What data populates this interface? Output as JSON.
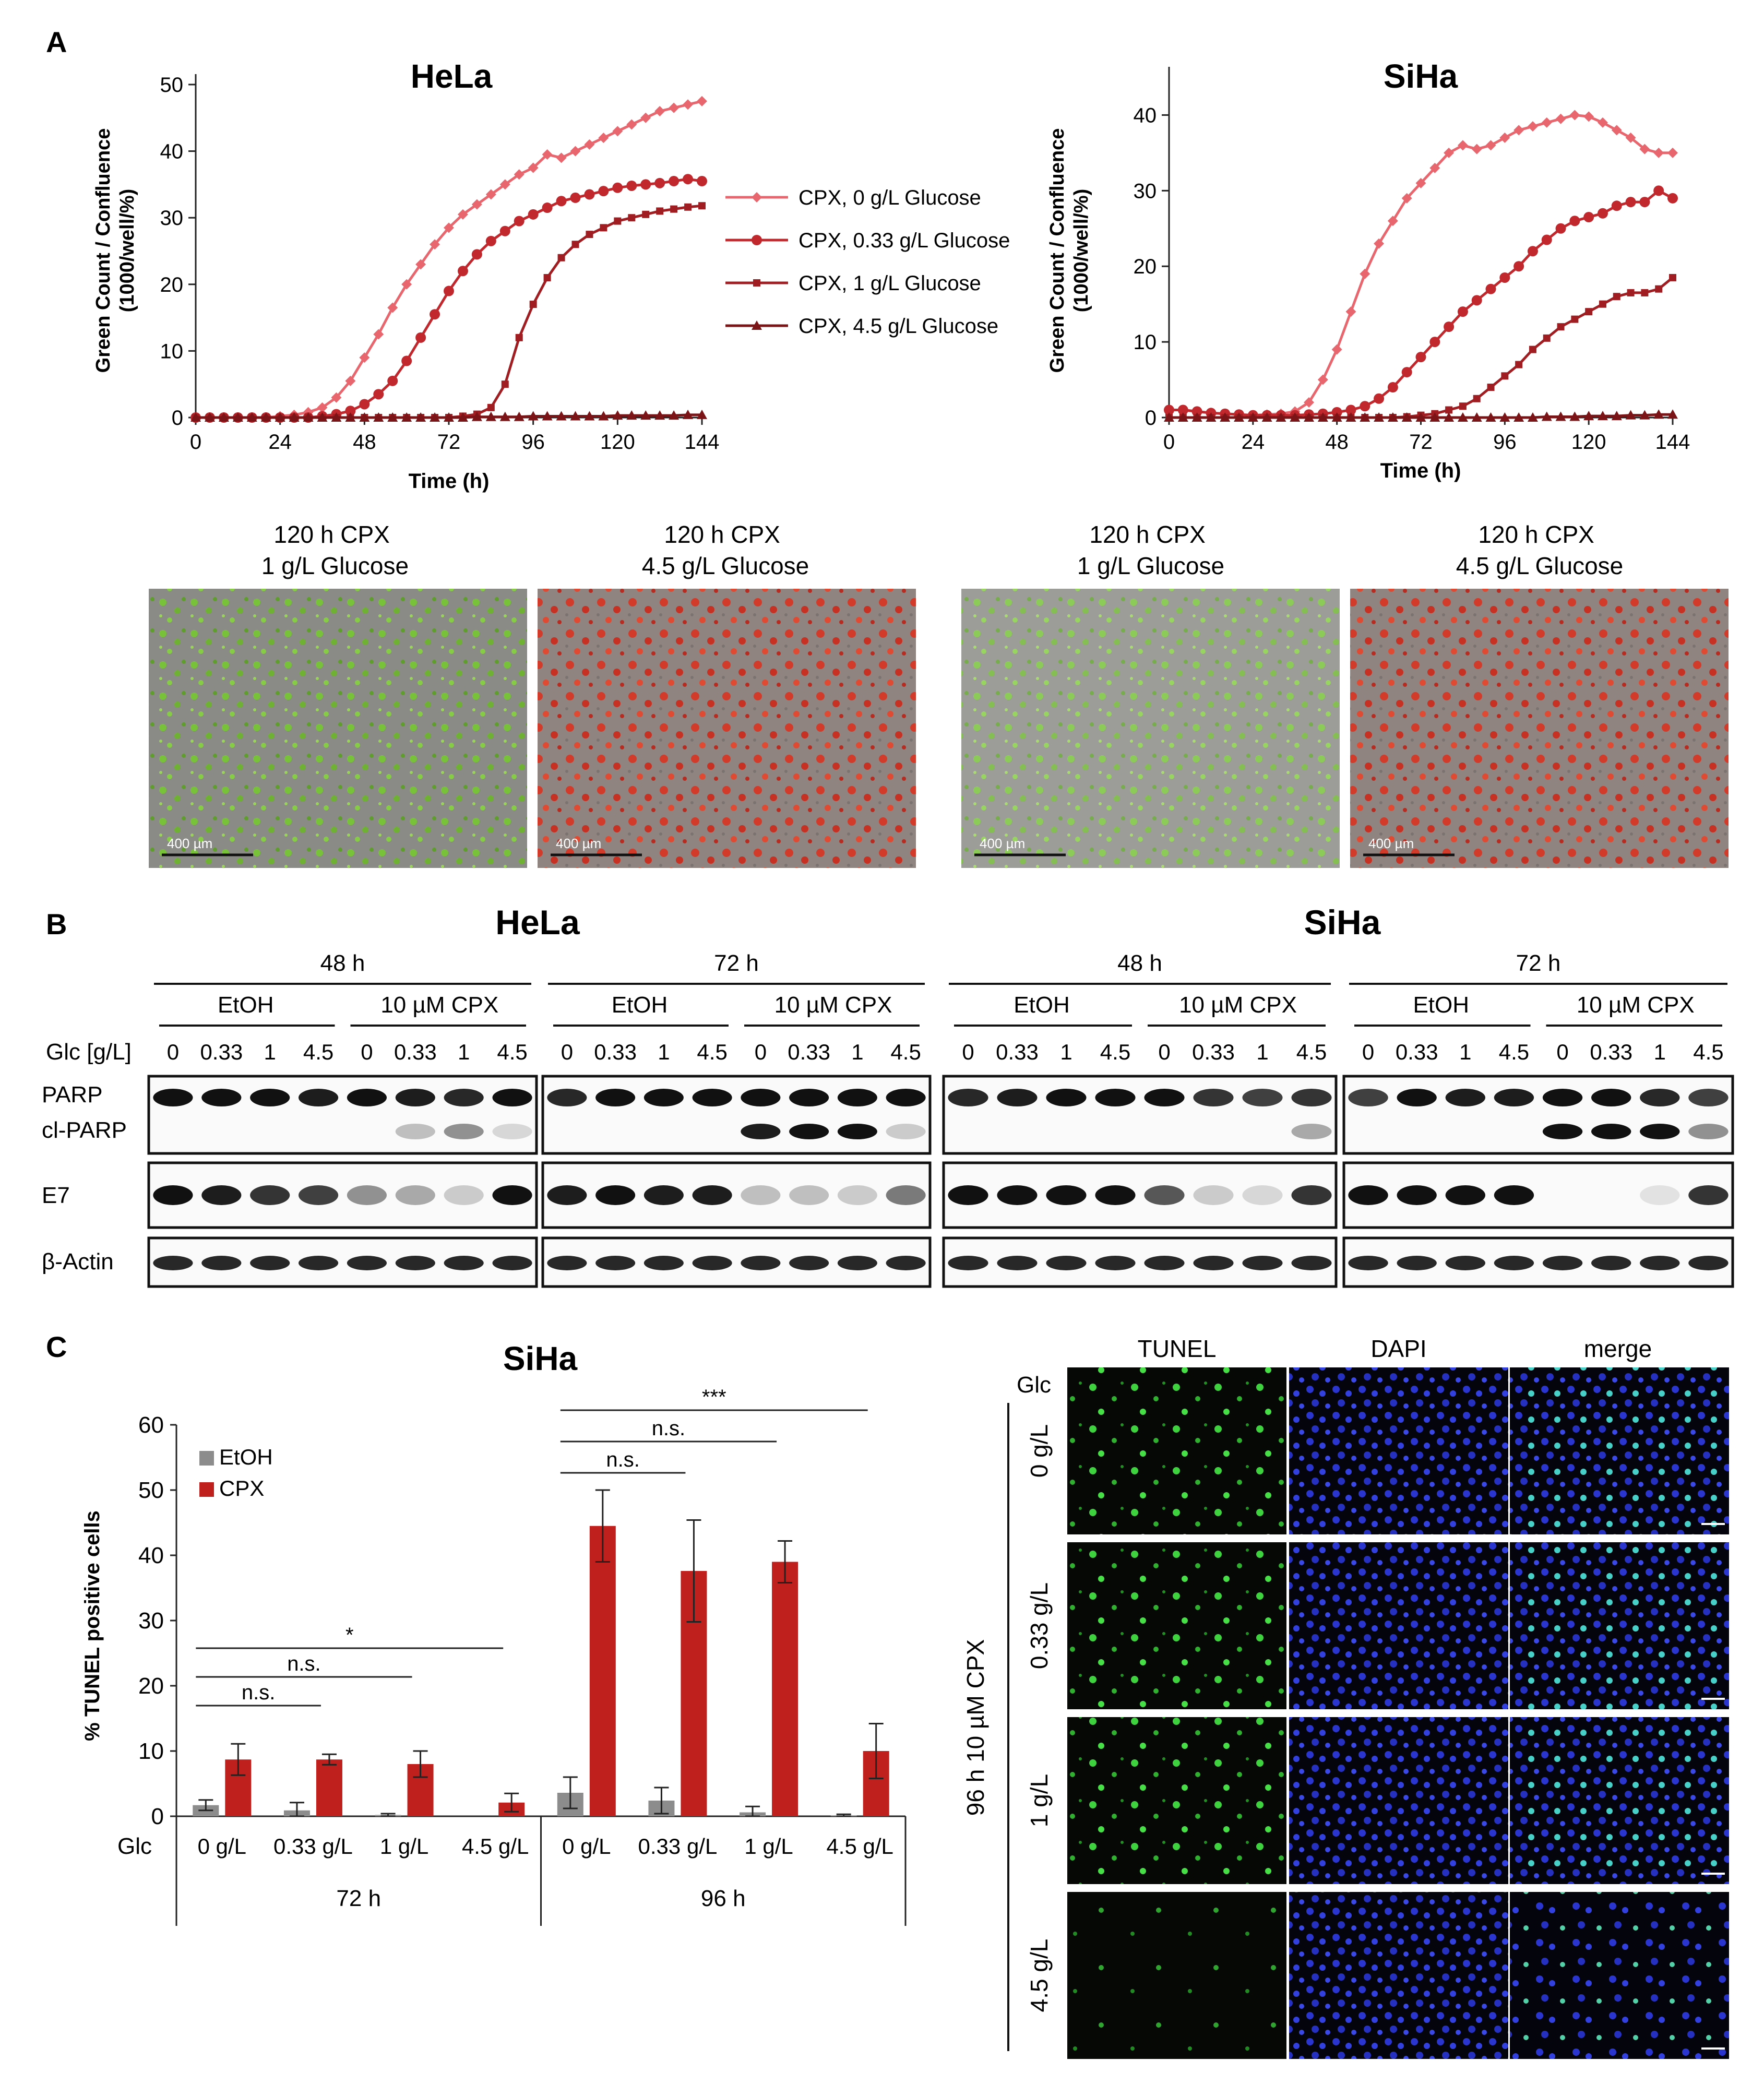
{
  "panels": {
    "a": "A",
    "b": "B",
    "c": "C"
  },
  "colors": {
    "s0": "#E8676F",
    "s1": "#C0282E",
    "s2": "#A01E22",
    "s3": "#7A1416",
    "etoh": "#8C8C8C",
    "cpx": "#C0201D"
  },
  "chart_data": [
    {
      "type": "line",
      "title": "HeLa",
      "xlabel": "Time (h)",
      "ylabel": "Green Count / Confluence (1000/well/%)",
      "xlim": [
        0,
        144
      ],
      "ylim": [
        0,
        50
      ],
      "xticks": [
        0,
        24,
        48,
        72,
        96,
        120,
        144
      ],
      "yticks": [
        0,
        10,
        20,
        30,
        40,
        50
      ],
      "x": [
        0,
        4,
        8,
        12,
        16,
        20,
        24,
        28,
        32,
        36,
        40,
        44,
        48,
        52,
        56,
        60,
        64,
        68,
        72,
        76,
        80,
        84,
        88,
        92,
        96,
        100,
        104,
        108,
        112,
        116,
        120,
        124,
        128,
        132,
        136,
        140,
        144
      ],
      "series": [
        {
          "name": "CPX, 0 g/L Glucose",
          "marker": "diamond",
          "values": [
            0,
            0,
            0,
            0,
            0,
            0,
            0.2,
            0.4,
            0.8,
            1.5,
            3,
            5.5,
            9,
            12.5,
            16.5,
            20,
            23,
            26,
            28.5,
            30.5,
            32,
            33.5,
            35,
            36.5,
            37.5,
            39.5,
            39,
            40,
            41,
            42,
            43,
            44,
            45,
            46,
            46.5,
            47,
            47.5
          ]
        },
        {
          "name": "CPX, 0.33 g/L Glucose",
          "marker": "circle",
          "values": [
            0,
            0,
            0,
            0,
            0,
            0,
            0,
            0,
            0,
            0.2,
            0.5,
            1,
            2,
            3.5,
            5.5,
            8.5,
            12,
            15.5,
            19,
            22,
            24.5,
            26.5,
            28,
            29.5,
            30.5,
            31.5,
            32.5,
            33,
            33.5,
            34,
            34.5,
            34.8,
            35,
            35.2,
            35.5,
            35.8,
            35.5
          ]
        },
        {
          "name": "CPX, 1 g/L Glucose",
          "marker": "square",
          "values": [
            0,
            0,
            0,
            0,
            0,
            0,
            0,
            0,
            0,
            0,
            0,
            0,
            0,
            0,
            0,
            0,
            0,
            0,
            0,
            0.2,
            0.5,
            1.5,
            5,
            12,
            17,
            21,
            24,
            26,
            27.5,
            28.5,
            29.5,
            30,
            30.5,
            31,
            31.3,
            31.6,
            31.8
          ]
        },
        {
          "name": "CPX, 4.5 g/L Glucose",
          "marker": "triangle",
          "values": [
            0,
            0,
            0,
            0,
            0,
            0,
            0,
            0,
            0,
            0,
            0,
            0,
            0,
            0,
            0,
            0,
            0,
            0,
            0,
            0,
            0.1,
            0.1,
            0.1,
            0.1,
            0.2,
            0.2,
            0.2,
            0.2,
            0.2,
            0.2,
            0.3,
            0.3,
            0.3,
            0.3,
            0.3,
            0.4,
            0.4
          ]
        }
      ],
      "legend": "right"
    },
    {
      "type": "line",
      "title": "SiHa",
      "xlabel": "Time (h)",
      "ylabel": "Green Count / Confluence (1000/well/%)",
      "xlim": [
        0,
        144
      ],
      "ylim": [
        0,
        45
      ],
      "xticks": [
        0,
        24,
        48,
        72,
        96,
        120,
        144
      ],
      "yticks": [
        0,
        10,
        20,
        30,
        40
      ],
      "x": [
        0,
        4,
        8,
        12,
        16,
        20,
        24,
        28,
        32,
        36,
        40,
        44,
        48,
        52,
        56,
        60,
        64,
        68,
        72,
        76,
        80,
        84,
        88,
        92,
        96,
        100,
        104,
        108,
        112,
        116,
        120,
        124,
        128,
        132,
        136,
        140,
        144
      ],
      "series": [
        {
          "name": "CPX, 0 g/L Glucose",
          "marker": "diamond",
          "values": [
            1,
            1,
            0.8,
            0.6,
            0.5,
            0.4,
            0.3,
            0.4,
            0.5,
            0.8,
            2,
            5,
            9,
            14,
            19,
            23,
            26,
            29,
            31,
            33,
            35,
            36,
            35.5,
            36,
            37,
            38,
            38.5,
            39,
            39.5,
            40,
            39.8,
            39,
            38,
            37,
            35.5,
            35,
            35
          ]
        },
        {
          "name": "CPX, 0.33 g/L Glucose",
          "marker": "circle",
          "values": [
            1,
            1,
            0.8,
            0.6,
            0.5,
            0.4,
            0.3,
            0.3,
            0.3,
            0.3,
            0.4,
            0.5,
            0.7,
            1,
            1.5,
            2.5,
            4,
            6,
            8,
            10,
            12,
            14,
            15.5,
            17,
            18.5,
            20,
            22,
            23.5,
            25,
            26,
            26.5,
            27,
            28,
            28.5,
            28.5,
            30,
            29
          ]
        },
        {
          "name": "CPX, 1 g/L Glucose",
          "marker": "square",
          "values": [
            0,
            0,
            0,
            0,
            0,
            0,
            0,
            0,
            0,
            0,
            0,
            0,
            0,
            0,
            0,
            0,
            0,
            0.1,
            0.3,
            0.5,
            1,
            1.5,
            2.5,
            4,
            5.5,
            7,
            9,
            10.5,
            12,
            13,
            14,
            15,
            16,
            16.5,
            16.5,
            17,
            18.5
          ]
        },
        {
          "name": "CPX, 4.5 g/L Glucose",
          "marker": "triangle",
          "values": [
            0,
            0,
            0,
            0,
            0,
            0,
            0,
            0,
            0,
            0,
            0,
            0,
            0,
            0,
            0,
            0,
            0,
            0,
            0,
            0,
            0,
            0,
            0,
            0,
            0,
            0,
            0,
            0.1,
            0.1,
            0.1,
            0.2,
            0.2,
            0.2,
            0.3,
            0.3,
            0.4,
            0.4
          ]
        }
      ]
    },
    {
      "type": "bar",
      "title": "SiHa",
      "ylabel": "% TUNEL positive cells",
      "ylim": [
        0,
        60
      ],
      "yticks": [
        0,
        10,
        20,
        30,
        40,
        50,
        60
      ],
      "axis_row_label": "Glc",
      "categories": [
        "0 g/L",
        "0.33 g/L",
        "1 g/L",
        "4.5 g/L",
        "0 g/L",
        "0.33 g/L",
        "1 g/L",
        "4.5 g/L"
      ],
      "groups": [
        "72 h",
        "96 h"
      ],
      "series": [
        {
          "name": "EtOH",
          "values": [
            1.7,
            0.9,
            0.2,
            0,
            3.6,
            2.4,
            0.6,
            0.1
          ],
          "errors": [
            0.8,
            1.2,
            0.2,
            0,
            2.4,
            2.0,
            0.9,
            0.2
          ]
        },
        {
          "name": "CPX",
          "values": [
            8.7,
            8.7,
            8.0,
            2.1,
            44.5,
            37.6,
            39.0,
            10.0
          ],
          "errors": [
            2.4,
            0.8,
            2.0,
            1.4,
            5.5,
            7.8,
            3.2,
            4.2
          ]
        }
      ],
      "significance": [
        {
          "label": "n.s.",
          "group": "72 h"
        },
        {
          "label": "n.s.",
          "group": "72 h"
        },
        {
          "label": "*",
          "group": "72 h"
        },
        {
          "label": "n.s.",
          "group": "96 h"
        },
        {
          "label": "n.s.",
          "group": "96 h"
        },
        {
          "label": "***",
          "group": "96 h"
        }
      ],
      "legend": "top-left"
    }
  ],
  "micrographs": {
    "hela_1": "120 h CPX\n1 g/L Glucose",
    "hela_45": "120 h CPX\n4.5 g/L Glucose",
    "siha_1": "120 h CPX\n1 g/L Glucose",
    "siha_45": "120 h CPX\n4.5 g/L Glucose",
    "scale": "400 µm"
  },
  "western": {
    "hela": "HeLa",
    "siha": "SiHa",
    "t48": "48 h",
    "t72": "72 h",
    "etoh": "EtOH",
    "cpx": "10 µM CPX",
    "glc_label": "Glc [g/L]",
    "concs": [
      "0",
      "0.33",
      "1",
      "4.5"
    ],
    "rows": [
      "PARP",
      "cl-PARP",
      "E7",
      "β-Actin"
    ]
  },
  "tunel": {
    "cols": [
      "TUNEL",
      "DAPI",
      "merge"
    ],
    "glc": "Glc",
    "rows": [
      "0 g/L",
      "0.33 g/L",
      "1 g/L",
      "4.5 g/L"
    ],
    "side": "96 h 10 µM CPX"
  }
}
